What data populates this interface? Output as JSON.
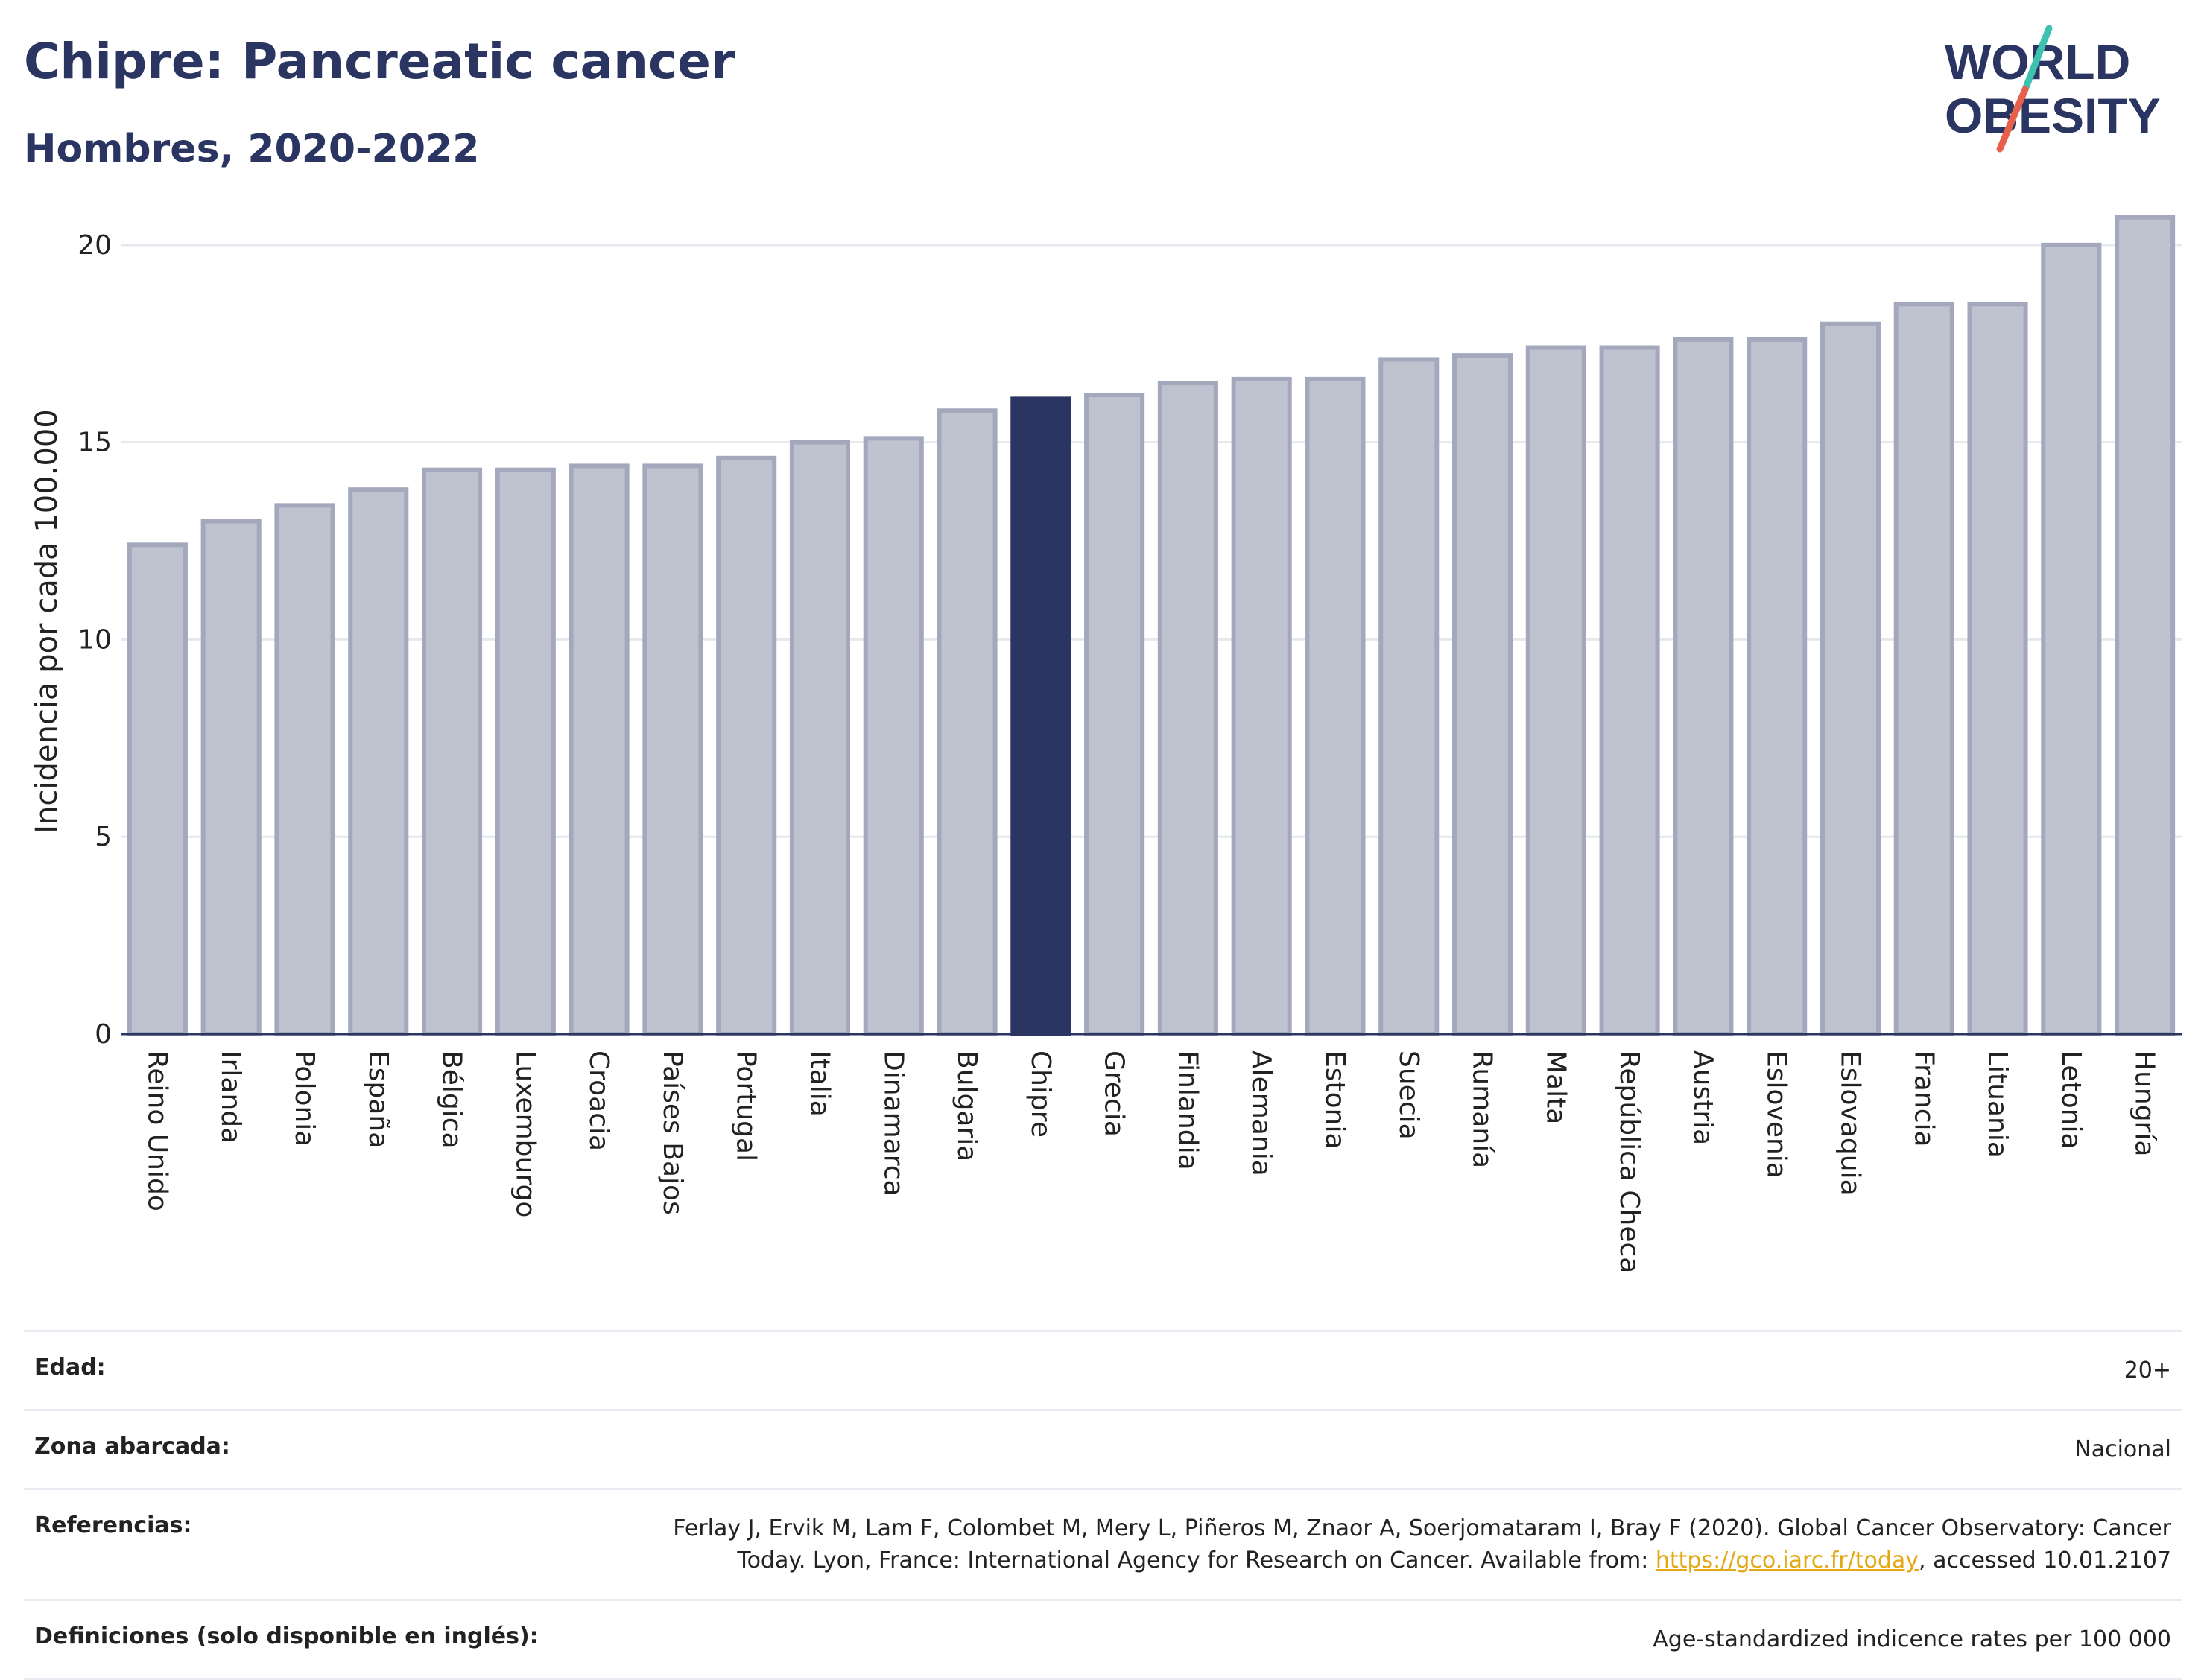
{
  "header": {
    "title": "Chipre: Pancreatic cancer",
    "subtitle": "Hombres, 2020-2022"
  },
  "logo": {
    "line1": "WORLD",
    "line2": "OBESITY",
    "slash_colors": [
      "#3fc1b0",
      "#e8604c"
    ]
  },
  "chart_data": {
    "type": "bar",
    "ylabel": "Incidencia por cada 100.000",
    "ylim": [
      0,
      21.3
    ],
    "yticks": [
      0,
      5,
      10,
      15,
      20
    ],
    "grid": true,
    "categories": [
      "Reino Unido",
      "Irlanda",
      "Polonia",
      "España",
      "Bélgica",
      "Luxemburgo",
      "Croacia",
      "Países Bajos",
      "Portugal",
      "Italia",
      "Dinamarca",
      "Bulgaria",
      "Chipre",
      "Grecia",
      "Finlandia",
      "Alemania",
      "Estonia",
      "Suecia",
      "Rumanía",
      "Malta",
      "República Checa",
      "Austria",
      "Eslovenia",
      "Eslovaquia",
      "Francia",
      "Lituania",
      "Letonia",
      "Hungría"
    ],
    "values": [
      12.4,
      13.0,
      13.4,
      13.8,
      14.3,
      14.3,
      14.4,
      14.4,
      14.6,
      15.0,
      15.1,
      15.8,
      16.1,
      16.2,
      16.5,
      16.6,
      16.6,
      17.1,
      17.2,
      17.4,
      17.4,
      17.6,
      17.6,
      18.0,
      18.5,
      18.5,
      20.0,
      20.7
    ],
    "highlight": "Chipre",
    "colors": {
      "bar_fill": "#bfc2cf",
      "bar_stroke": "#a3a8bd",
      "highlight": "#2b3561",
      "grid": "#e6e8ee",
      "axis": "#2b3561"
    }
  },
  "info": {
    "rows": [
      {
        "label": "Edad:",
        "value": "20+"
      },
      {
        "label": "Zona abarcada:",
        "value": "Nacional"
      },
      {
        "label": "Referencias:",
        "value_pre": "Ferlay J, Ervik M, Lam F, Colombet M, Mery L, Piñeros M, Znaor A, Soerjomataram I, Bray F (2020). Global Cancer Observatory: Cancer Today. Lyon, France: International Agency for Research on Cancer. Available from: ",
        "link": "https://gco.iarc.fr/today",
        "value_post": ", accessed 10.01.2107"
      },
      {
        "label": "Definiciones (solo disponible en inglés):",
        "value": "Age-standardized indicence rates per 100 000"
      }
    ]
  }
}
